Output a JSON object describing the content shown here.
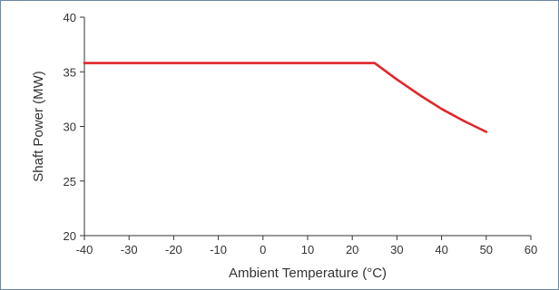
{
  "chart_data": {
    "type": "line",
    "title": "",
    "xlabel": "Ambient Temperature (°C)",
    "ylabel": "Shaft Power (MW)",
    "xlim": [
      -40,
      60
    ],
    "ylim": [
      20,
      40
    ],
    "xticks": [
      -40,
      -30,
      -20,
      -10,
      0,
      10,
      20,
      30,
      40,
      50,
      60
    ],
    "yticks": [
      20,
      25,
      30,
      35,
      40
    ],
    "grid": false,
    "series": [
      {
        "color": "#e0262b",
        "x": [
          -40,
          25,
          30,
          35,
          40,
          45,
          50
        ],
        "y": [
          35.8,
          35.8,
          34.3,
          32.9,
          31.6,
          30.5,
          29.5
        ]
      }
    ]
  }
}
